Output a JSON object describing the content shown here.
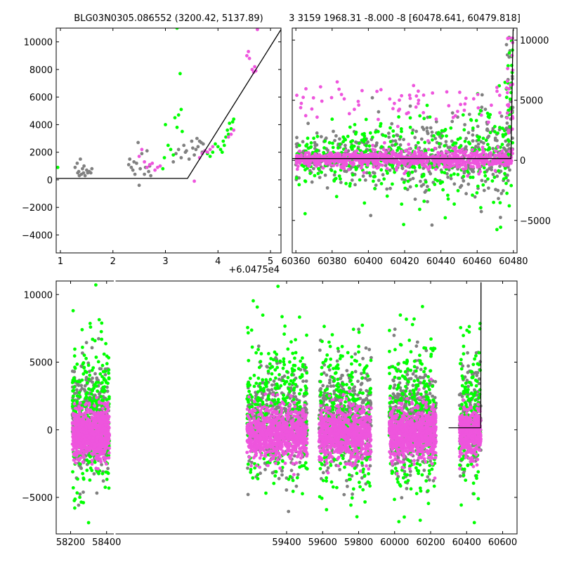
{
  "figure": {
    "title_left": "BLG03N0305.086552 (3200.42, 5137.89)",
    "title_right": "3 3159 1968.31 -8.000 -8 [60478.641, 60479.818]",
    "offset_label": "+6.0475e4"
  },
  "colors": {
    "gray": "#808080",
    "green": "#00ff00",
    "magenta": "#ee55dd",
    "model": "#000000"
  },
  "chart_data": [
    {
      "type": "scatter",
      "panel": "top-left",
      "xlim": [
        0.92,
        5.2
      ],
      "ylim": [
        -5300,
        11000
      ],
      "xticks": [
        1,
        2,
        3,
        4,
        5
      ],
      "yticks": [
        -4000,
        -2000,
        0,
        2000,
        4000,
        6000,
        8000,
        10000
      ],
      "x_offset": "+6.0475e4",
      "model_line": [
        [
          0.92,
          100
        ],
        [
          3.42,
          100
        ],
        [
          5.2,
          10900
        ]
      ],
      "series": [
        {
          "color": "gray",
          "points": [
            [
              1.28,
              900
            ],
            [
              1.32,
              1200
            ],
            [
              1.35,
              600
            ],
            [
              1.38,
              1500
            ],
            [
              1.4,
              400
            ],
            [
              1.42,
              800
            ],
            [
              1.45,
              1000
            ],
            [
              1.47,
              300
            ],
            [
              1.5,
              700
            ],
            [
              1.52,
              500
            ],
            [
              1.55,
              600
            ],
            [
              1.58,
              500
            ],
            [
              1.6,
              800
            ],
            [
              1.36,
              300
            ],
            [
              1.44,
              500
            ],
            [
              1.33,
              500
            ],
            [
              2.3,
              1100
            ],
            [
              2.32,
              1500
            ],
            [
              2.35,
              900
            ],
            [
              2.38,
              700
            ],
            [
              2.4,
              1300
            ],
            [
              2.42,
              400
            ],
            [
              2.45,
              1200
            ],
            [
              2.48,
              2700
            ],
            [
              2.5,
              -400
            ],
            [
              2.52,
              800
            ],
            [
              2.55,
              1900
            ],
            [
              2.6,
              400
            ],
            [
              2.62,
              900
            ],
            [
              2.65,
              2100
            ],
            [
              2.68,
              600
            ],
            [
              2.7,
              1000
            ],
            [
              2.72,
              300
            ],
            [
              3.15,
              1300
            ],
            [
              3.2,
              1900
            ],
            [
              3.25,
              2200
            ],
            [
              3.3,
              1600
            ],
            [
              3.35,
              2500
            ],
            [
              3.4,
              2100
            ],
            [
              3.45,
              1500
            ],
            [
              3.5,
              2800
            ],
            [
              3.52,
              2300
            ],
            [
              3.55,
              1800
            ],
            [
              3.6,
              3000
            ],
            [
              3.62,
              2400
            ],
            [
              3.65,
              2800
            ],
            [
              3.68,
              2700
            ],
            [
              3.7,
              2000
            ],
            [
              3.72,
              2600
            ],
            [
              3.38,
              2000
            ],
            [
              3.58,
              2200
            ]
          ]
        },
        {
          "color": "green",
          "points": [
            [
              0.95,
              900
            ],
            [
              2.95,
              800
            ],
            [
              2.98,
              1600
            ],
            [
              3.0,
              4000
            ],
            [
              3.05,
              2500
            ],
            [
              3.1,
              2200
            ],
            [
              3.15,
              1800
            ],
            [
              3.18,
              4500
            ],
            [
              3.22,
              3800
            ],
            [
              3.25,
              4700
            ],
            [
              3.28,
              7700
            ],
            [
              3.3,
              5100
            ],
            [
              3.32,
              3500
            ],
            [
              3.22,
              11000
            ],
            [
              3.75,
              2100
            ],
            [
              3.8,
              1900
            ],
            [
              3.9,
              2000
            ],
            [
              3.95,
              2600
            ],
            [
              4.0,
              2400
            ],
            [
              4.05,
              2200
            ],
            [
              4.1,
              2800
            ],
            [
              4.12,
              2500
            ],
            [
              4.15,
              3100
            ],
            [
              4.18,
              3600
            ],
            [
              4.2,
              3300
            ],
            [
              4.22,
              4100
            ],
            [
              4.25,
              3700
            ],
            [
              4.28,
              4200
            ],
            [
              4.3,
              4400
            ],
            [
              4.08,
              2000
            ],
            [
              3.85,
              1700
            ]
          ]
        },
        {
          "color": "magenta",
          "points": [
            [
              2.5,
              1700
            ],
            [
              2.55,
              2200
            ],
            [
              2.6,
              1300
            ],
            [
              2.65,
              900
            ],
            [
              2.7,
              1100
            ],
            [
              2.75,
              1200
            ],
            [
              2.8,
              700
            ],
            [
              2.85,
              900
            ],
            [
              2.9,
              1000
            ],
            [
              3.55,
              -100
            ],
            [
              3.65,
              1600
            ],
            [
              3.7,
              1900
            ],
            [
              3.75,
              2100
            ],
            [
              3.8,
              2000
            ],
            [
              3.85,
              2200
            ],
            [
              3.9,
              2400
            ],
            [
              4.2,
              3100
            ],
            [
              4.25,
              3300
            ],
            [
              4.3,
              3600
            ],
            [
              4.55,
              9000
            ],
            [
              4.58,
              9300
            ],
            [
              4.6,
              8800
            ],
            [
              4.65,
              8000
            ],
            [
              4.68,
              7800
            ],
            [
              4.7,
              8200
            ],
            [
              4.72,
              7900
            ],
            [
              4.75,
              10900
            ]
          ]
        }
      ]
    },
    {
      "type": "scatter",
      "panel": "top-right",
      "xlim": [
        60358,
        60482
      ],
      "ylim": [
        -7700,
        11000
      ],
      "xticks": [
        60360,
        60380,
        60400,
        60420,
        60440,
        60460,
        60480
      ],
      "yticks": [
        -5000,
        0,
        5000,
        10000
      ],
      "model_line": [
        [
          60358,
          150
        ],
        [
          60478.641,
          150
        ],
        [
          60479.818,
          10900
        ]
      ],
      "density": [
        {
          "color": "gray",
          "x_range": [
            60360,
            60479
          ],
          "center": 300,
          "spread": 2400,
          "count": 520
        },
        {
          "color": "green",
          "x_range": [
            60360,
            60479
          ],
          "center": 200,
          "spread": 3000,
          "count": 420
        },
        {
          "color": "magenta",
          "x_range": [
            60360,
            60479
          ],
          "center": 100,
          "spread": 650,
          "count": 900
        }
      ]
    },
    {
      "type": "scatter",
      "panel": "bottom",
      "xlim": [
        58120,
        60680
      ],
      "ylim": [
        -7700,
        11000
      ],
      "xticks": [
        58200,
        58400,
        59400,
        59600,
        59800,
        60000,
        60200,
        60400,
        60600
      ],
      "yticks": [
        -5000,
        0,
        5000,
        10000
      ],
      "model_line": [
        [
          60300,
          150
        ],
        [
          60478.641,
          150
        ],
        [
          60479.818,
          10900
        ]
      ],
      "seasons": [
        {
          "x_range": [
            58210,
            58415
          ]
        },
        {
          "x_range": [
            59180,
            59515
          ]
        },
        {
          "x_range": [
            59580,
            59870
          ]
        },
        {
          "x_range": [
            59970,
            60230
          ]
        },
        {
          "x_range": [
            60360,
            60479
          ]
        }
      ],
      "density": [
        {
          "color": "gray",
          "center": 800,
          "spread": 2600,
          "count_per_season": 420
        },
        {
          "color": "green",
          "center": 900,
          "spread": 3600,
          "count_per_season": 330
        },
        {
          "color": "magenta",
          "center": -300,
          "spread": 1200,
          "count_per_season": 800
        }
      ]
    }
  ]
}
